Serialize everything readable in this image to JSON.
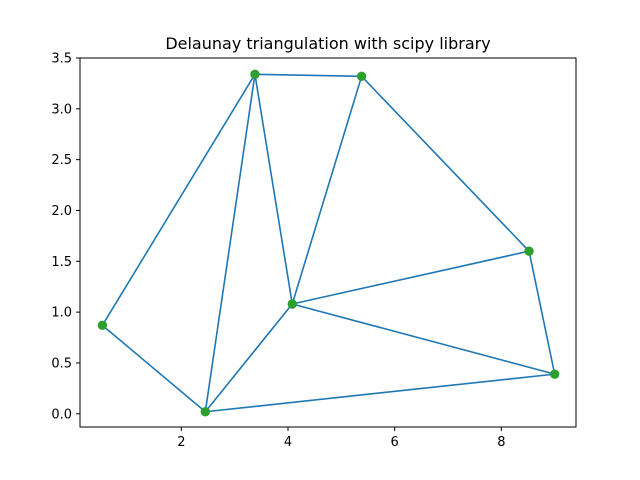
{
  "chart_data": {
    "type": "scatter",
    "title": "Delaunay triangulation with scipy library",
    "xlabel": "",
    "ylabel": "",
    "xlim": [
      0.1,
      9.4
    ],
    "ylim": [
      -0.13,
      3.5
    ],
    "xticks": [
      2,
      4,
      6,
      8
    ],
    "yticks": [
      0.0,
      0.5,
      1.0,
      1.5,
      2.0,
      2.5,
      3.0,
      3.5
    ],
    "grid": false,
    "points": [
      {
        "x": 0.52,
        "y": 0.87
      },
      {
        "x": 2.45,
        "y": 0.02
      },
      {
        "x": 3.38,
        "y": 3.34
      },
      {
        "x": 4.08,
        "y": 1.08
      },
      {
        "x": 5.38,
        "y": 3.32
      },
      {
        "x": 8.52,
        "y": 1.6
      },
      {
        "x": 9.0,
        "y": 0.39
      }
    ],
    "triangles": [
      [
        0,
        1,
        2
      ],
      [
        1,
        2,
        3
      ],
      [
        2,
        3,
        4
      ],
      [
        3,
        4,
        5
      ],
      [
        1,
        3,
        6
      ],
      [
        3,
        5,
        6
      ]
    ],
    "colors": {
      "edge": "#1f77b4",
      "point": "#2ca02c",
      "axes": "#000000"
    }
  }
}
